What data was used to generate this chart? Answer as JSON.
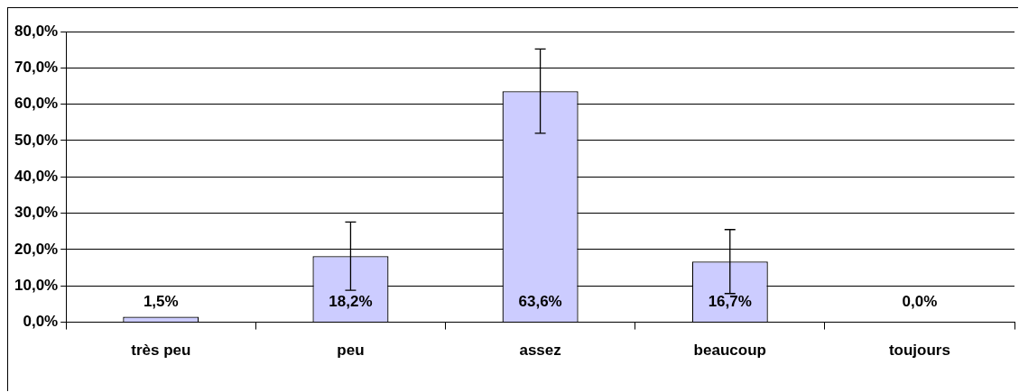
{
  "chart_data": {
    "type": "bar",
    "categories": [
      "très peu",
      "peu",
      "assez",
      "beaucoup",
      "toujours"
    ],
    "values": [
      1.5,
      18.2,
      63.6,
      16.7,
      0.0
    ],
    "errors": [
      null,
      9.4,
      11.6,
      8.8,
      null
    ],
    "value_labels": [
      "1,5%",
      "18,2%",
      "63,6%",
      "16,7%",
      "0,0%"
    ],
    "color": "#ccccff",
    "ylim": [
      0,
      80
    ],
    "yticks": [
      {
        "value": 0,
        "label": "0,0%"
      },
      {
        "value": 10,
        "label": "10,0%"
      },
      {
        "value": 20,
        "label": "20,0%"
      },
      {
        "value": 30,
        "label": "30,0%"
      },
      {
        "value": 40,
        "label": "40,0%"
      },
      {
        "value": 50,
        "label": "50,0%"
      },
      {
        "value": 60,
        "label": "60,0%"
      },
      {
        "value": 70,
        "label": "70,0%"
      },
      {
        "value": 80,
        "label": "80,0%"
      }
    ],
    "grid": "y",
    "legend": false
  }
}
